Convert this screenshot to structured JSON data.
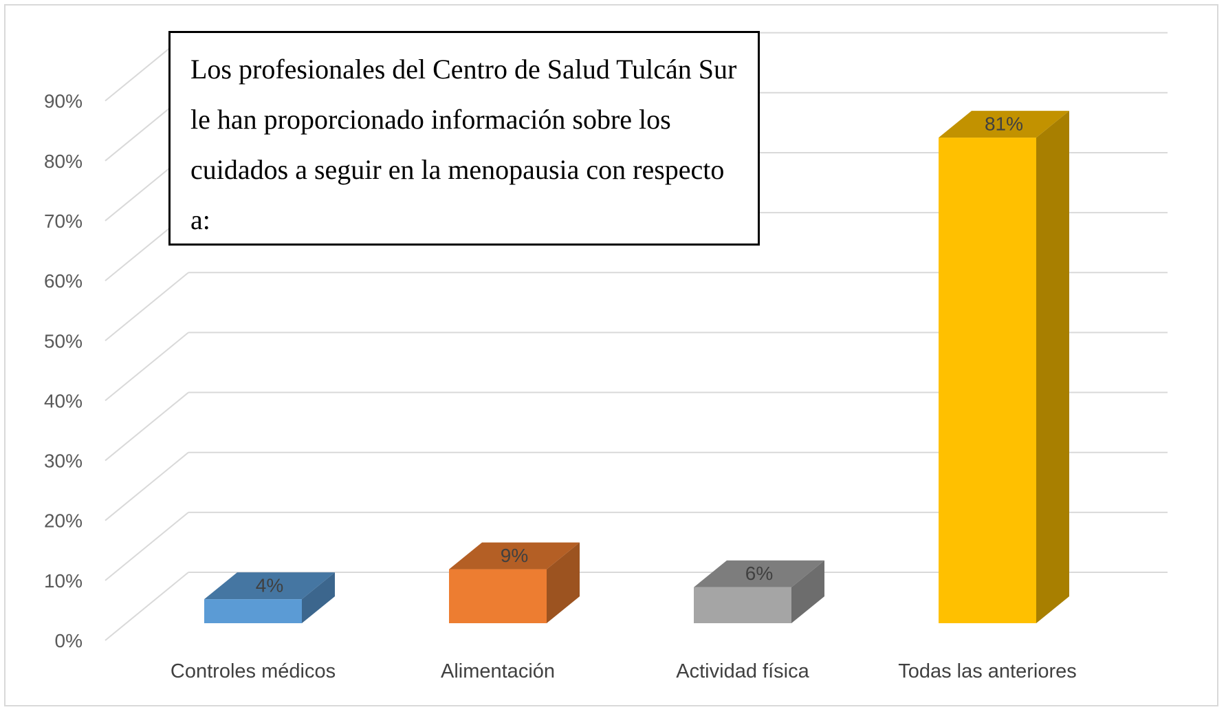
{
  "chart_data": {
    "type": "bar",
    "style": "3d-column",
    "title": "Los profesionales del Centro de Salud Tulcán Sur le han proporcionado información sobre los cuidados a seguir en la menopausia con respecto a:",
    "categories": [
      "Controles médicos",
      "Alimentación",
      "Actividad física",
      "Todas las anteriores"
    ],
    "values": [
      4,
      9,
      6,
      81
    ],
    "data_labels": [
      "4%",
      "9%",
      "6%",
      "81%"
    ],
    "colors": [
      "#5b9bd5",
      "#ed7d31",
      "#a5a5a5",
      "#ffc000"
    ],
    "ylim": [
      0,
      90
    ],
    "yticks": [
      0,
      10,
      20,
      30,
      40,
      50,
      60,
      70,
      80,
      90
    ],
    "ytick_labels": [
      "0%",
      "10%",
      "20%",
      "30%",
      "40%",
      "50%",
      "60%",
      "70%",
      "80%",
      "90%"
    ],
    "grid": true,
    "legend": "none",
    "xlabel": "",
    "ylabel": ""
  }
}
